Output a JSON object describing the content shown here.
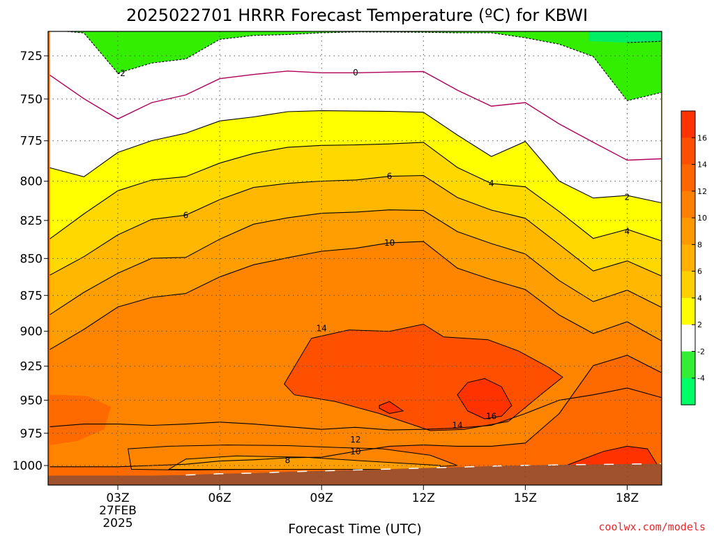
{
  "chart_data": {
    "type": "heatmap",
    "title": "2025022701 HRRR Forecast Temperature (ºC) for KBWI",
    "xlabel": "Forecast Time (UTC)",
    "ylabel": "",
    "x_ticks": [
      "03Z",
      "06Z",
      "09Z",
      "12Z",
      "15Z",
      "18Z"
    ],
    "x_tick_hours": [
      3,
      6,
      9,
      12,
      15,
      18
    ],
    "x_sub_labels": [
      "27FEB",
      "2025"
    ],
    "xlim": [
      1,
      19
    ],
    "y_ticks": [
      725,
      750,
      775,
      800,
      825,
      850,
      875,
      900,
      925,
      950,
      975,
      1000
    ],
    "ylim": [
      1008,
      710
    ],
    "y_scale": "log-pressure",
    "grid": true,
    "contour_levels": [
      -4,
      -2,
      0,
      2,
      4,
      6,
      8,
      10,
      12,
      14,
      16
    ],
    "contour_labels_shown": [
      "-2",
      "0",
      "2",
      "4",
      "6",
      "8",
      "10",
      "12",
      "14",
      "16"
    ],
    "colorbar": {
      "ticks": [
        16,
        14,
        12,
        10,
        8,
        6,
        4,
        2,
        -2,
        -4
      ],
      "colors": [
        "#ff3300",
        "#ff4f00",
        "#ff6600",
        "#ff8000",
        "#ff9900",
        "#ffb000",
        "#ffd000",
        "#ffff00",
        "#ffffff",
        "#33ee33",
        "#00ff66"
      ]
    },
    "band_colors": {
      "lt_-4": "#00ee66",
      "-4_-2": "#33ee00",
      "-2_2": "#ffffff",
      "2_4": "#ffff00",
      "4_6": "#ffd800",
      "6_8": "#ffb700",
      "8_10": "#ff9e00",
      "10_12": "#ff8500",
      "12_14": "#ff6a00",
      "14_16": "#ff5000",
      "gt_16": "#ff3200"
    },
    "ground_color": "#a0522d",
    "zero_line_color": "#b0005a",
    "hours": [
      1,
      2,
      3,
      4,
      5,
      6,
      7,
      8,
      9,
      10,
      11,
      12,
      13,
      14,
      15,
      16,
      17,
      18,
      19
    ],
    "isotherm_pressures": {
      "m4": [
        null,
        null,
        null,
        null,
        null,
        null,
        null,
        null,
        null,
        null,
        null,
        null,
        null,
        null,
        null,
        null,
        null,
        717.5,
        716.8
      ],
      "m2": [
        710.4,
        712.1,
        734.9,
        729.1,
        726.8,
        715.7,
        713.5,
        713.0,
        712.0,
        711.5,
        711.6,
        711.7,
        712.0,
        712.0,
        714.8,
        718.4,
        725.4,
        751.0,
        746.2
      ],
      "0": [
        736.1,
        749.8,
        761.8,
        752.1,
        747.6,
        738.1,
        735.7,
        733.7,
        734.7,
        734.7,
        734.3,
        734.0,
        744.8,
        754.2,
        752.1,
        764.8,
        775.9,
        786.9,
        786.0
      ],
      "2": [
        791.6,
        797.2,
        782.1,
        774.9,
        770.4,
        763.0,
        760.6,
        757.5,
        756.9,
        757.1,
        757.3,
        757.8,
        771.5,
        784.6,
        775.4,
        799.9,
        810.6,
        809.0,
        813.6
      ],
      "4": [
        837.0,
        820.8,
        806.0,
        799.2,
        797.1,
        788.7,
        782.7,
        779.0,
        777.8,
        777.5,
        776.9,
        775.9,
        791.4,
        801.4,
        803.5,
        819.3,
        836.7,
        830.8,
        838.3
      ],
      "6": [
        861.2,
        848.8,
        834.4,
        824.3,
        821.6,
        811.6,
        803.9,
        801.3,
        799.9,
        799.2,
        796.9,
        796.4,
        810.3,
        818.3,
        823.6,
        840.7,
        858.4,
        851.6,
        861.7
      ],
      "8": [
        888.3,
        872.9,
        859.9,
        849.9,
        849.3,
        837.2,
        827.4,
        823.3,
        820.4,
        819.6,
        818.2,
        818.6,
        832.3,
        840.1,
        847.0,
        864.9,
        879.3,
        871.4,
        883.1
      ],
      "10": [
        912.9,
        898.7,
        883.0,
        876.3,
        873.7,
        862.4,
        854.2,
        849.5,
        845.2,
        843.2,
        839.6,
        838.8,
        856.5,
        864.2,
        871.0,
        888.6,
        901.6,
        893.3,
        906.6
      ],
      "12": [
        1001.0,
        1001.0,
        1001.0,
        1000.0,
        999.0,
        996.5,
        995.5,
        994.0,
        993.5,
        989.0,
        985.0,
        984.0,
        985.0,
        985.0,
        982.5,
        960.0,
        924.6,
        917.1,
        929.6
      ],
      "14": [
        970.0,
        968.0,
        968.0,
        969.0,
        968.0,
        966.5,
        968.0,
        970.0,
        972.0,
        970.5,
        972.5,
        972.0,
        971.0,
        969.0,
        960.0,
        950.0,
        946.0,
        941.0,
        948.0
      ]
    },
    "ground_pressure": [
      1008,
      1008,
      1008,
      1008,
      1007.5,
      1006.5,
      1006,
      1005,
      1004.2,
      1003.5,
      1002.8,
      1002,
      1001.3,
      1000.5,
      999.9,
      999.5,
      999.2,
      998.9,
      998.6
    ],
    "warm_cores": [
      {
        "level": 14,
        "hours": [
          8.7,
          9.8,
          11.0,
          12.0,
          12.6,
          13.9,
          14.8,
          15.7,
          16.1,
          15.5,
          14.5,
          13.2,
          12.2,
          10.7,
          9.4,
          8.2,
          7.9
        ],
        "pressures": [
          905,
          899,
          900,
          895,
          904,
          906,
          914,
          926,
          933,
          945,
          966,
          972,
          973,
          960,
          951,
          946,
          938
        ]
      },
      {
        "level": 16,
        "hours": [
          13.3,
          13.8,
          14.3,
          14.6,
          14.3,
          13.8,
          13.3,
          13.0
        ],
        "pressures": [
          937,
          934,
          940,
          954,
          962,
          964,
          958,
          946
        ]
      },
      {
        "level": 16,
        "hours": [
          10.7,
          11.0,
          11.4,
          11.0,
          10.7
        ],
        "pressures": [
          954,
          951,
          958,
          960,
          956
        ]
      },
      {
        "level": 16,
        "hours": [
          16.2,
          17.3,
          18.0,
          18.6,
          18.9,
          17.5,
          16.2
        ],
        "pressures": [
          1000,
          989,
          985,
          987,
          1000,
          1001,
          1001
        ]
      }
    ],
    "surface_warm_layer_2": {
      "hours": [
        1.3,
        2.1,
        2.8,
        2.6,
        1.8,
        1.0
      ],
      "pressures": [
        946,
        947,
        955,
        972,
        981,
        984
      ]
    },
    "surface_cool_pocket": {
      "hours": [
        3.3,
        4.5,
        6.2,
        8.0,
        9.5,
        10.8,
        12.2,
        13.0,
        12.0,
        9.8,
        7.2,
        5.0,
        3.4
      ],
      "pressures": [
        987,
        985,
        984,
        984.5,
        986,
        987,
        992,
        1000,
        1001.5,
        1002,
        1003,
        1003.5,
        1003
      ]
    },
    "labels": [
      {
        "text": "-2",
        "h": 3.1,
        "p": 734.9
      },
      {
        "text": "0",
        "h": 10.0,
        "p": 734.6
      },
      {
        "text": "6",
        "h": 11.0,
        "p": 796.9
      },
      {
        "text": "4",
        "h": 14.0,
        "p": 801.4
      },
      {
        "text": "2",
        "h": 18.0,
        "p": 810.0
      },
      {
        "text": "4",
        "h": 18.0,
        "p": 832.0
      },
      {
        "text": "6",
        "h": 5.0,
        "p": 821.6
      },
      {
        "text": "10",
        "h": 11.0,
        "p": 839.6
      },
      {
        "text": "14",
        "h": 9.0,
        "p": 898.0
      },
      {
        "text": "16",
        "h": 14.0,
        "p": 962.0
      },
      {
        "text": "14",
        "h": 13.0,
        "p": 969.0
      },
      {
        "text": "12",
        "h": 10.0,
        "p": 980.0
      },
      {
        "text": "10",
        "h": 10.0,
        "p": 989.0
      },
      {
        "text": "8",
        "h": 8.0,
        "p": 996.0
      }
    ]
  },
  "credit": "coolwx.com/models"
}
